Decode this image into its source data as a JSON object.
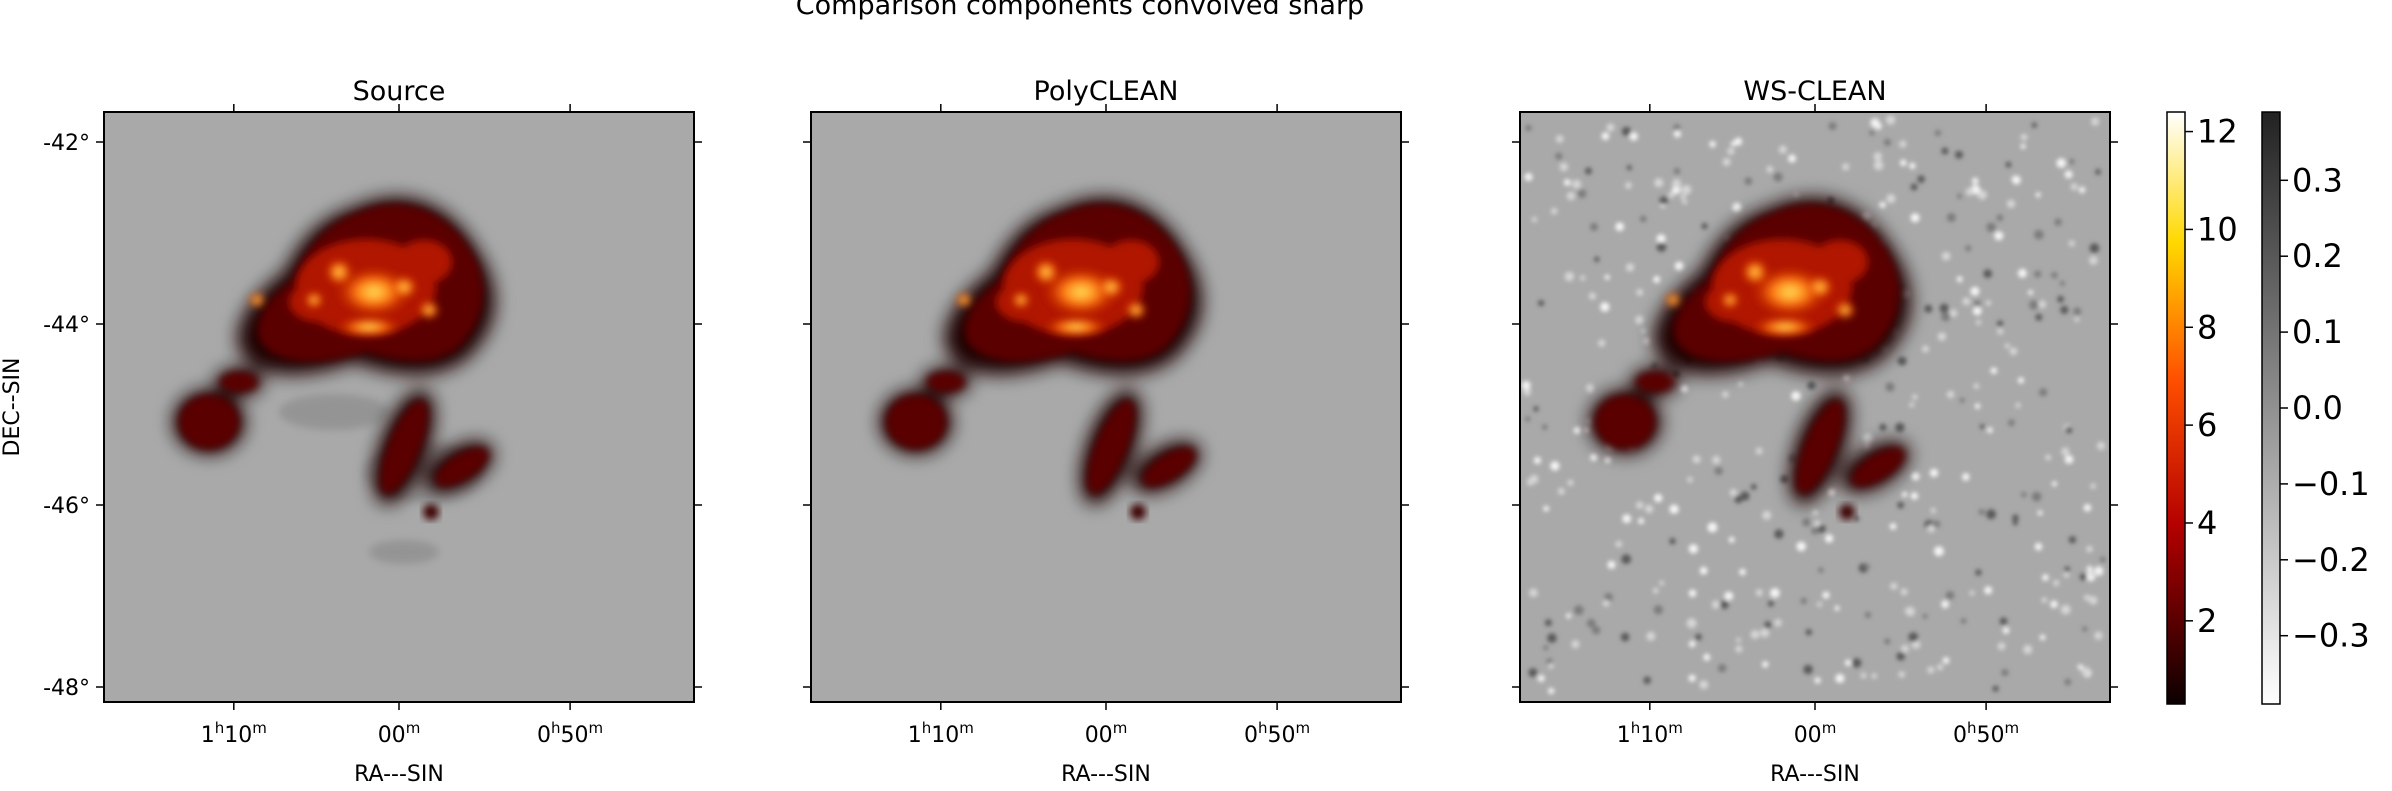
{
  "figure": {
    "suptitle": "Comparison components convolved sharp",
    "panels": [
      {
        "title": "Source",
        "xlabel": "RA---SIN",
        "ylabel": "DEC--SIN",
        "background": "source"
      },
      {
        "title": "PolyCLEAN",
        "xlabel": "RA---SIN",
        "ylabel": "",
        "background": "clean"
      },
      {
        "title": "WS-CLEAN",
        "xlabel": "RA---SIN",
        "ylabel": "",
        "background": "noise"
      }
    ],
    "ra_ticks": [
      {
        "h": "1",
        "hu": "h",
        "m": "10",
        "mu": "m"
      },
      {
        "h": "",
        "hu": "",
        "m": "00",
        "mu": "m"
      },
      {
        "h": "0",
        "hu": "h",
        "m": "50",
        "mu": "m"
      }
    ],
    "dec_ticks": [
      "-42°",
      "-44°",
      "-46°",
      "-48°"
    ],
    "colorbar_hot": {
      "ticks": [
        "12",
        "10",
        "8",
        "6",
        "4",
        "2"
      ],
      "colormap": "hot",
      "range": [
        0.3,
        12.4
      ]
    },
    "colorbar_gray": {
      "ticks": [
        "0.3",
        "0.2",
        "0.1",
        "0.0",
        "−0.1",
        "−0.2",
        "−0.3"
      ],
      "colormap": "gray_r",
      "range": [
        -0.39,
        0.39
      ]
    }
  }
}
